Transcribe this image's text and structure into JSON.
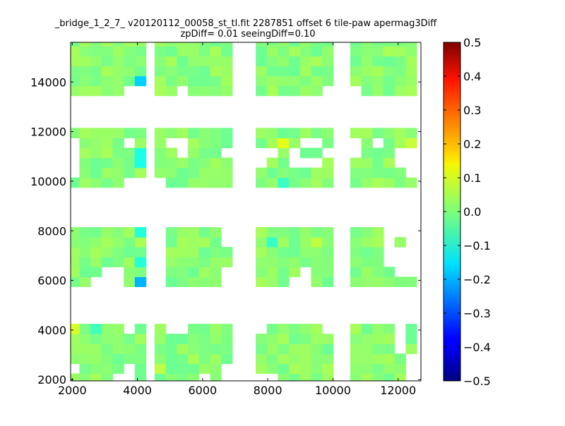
{
  "chart_data": {
    "type": "heatmap",
    "title": "_bridge_1_2_7_ v20120112_00058_st_tl.fit 2287851 offset 6 tile-paw apermag3Diff",
    "subtitle": "zpDiff= 0.01 seeingDiff=0.10",
    "xlabel": "",
    "ylabel": "",
    "xlim": [
      1950,
      12700
    ],
    "ylim": [
      1950,
      15600
    ],
    "x_ticks": [
      2000,
      4000,
      6000,
      8000,
      10000,
      12000
    ],
    "y_ticks": [
      2000,
      4000,
      6000,
      8000,
      10000,
      12000,
      14000
    ],
    "colorbar": {
      "colormap": "jet",
      "range": [
        -0.5,
        0.5
      ],
      "ticks": [
        "0.5",
        "0.4",
        "0.3",
        "0.2",
        "0.1",
        "0.0",
        "−0.1",
        "−0.2",
        "−0.3",
        "−0.4",
        "−0.5"
      ]
    },
    "cell_size": [
      340,
      400
    ],
    "outliers": [
      {
        "x": 2050,
        "y": 3950,
        "value": 0.09
      },
      {
        "x": 4020,
        "y": 14150,
        "value": -0.17
      },
      {
        "x": 4020,
        "y": 6000,
        "value": -0.2
      },
      {
        "x": 9530,
        "y": 15450,
        "value": -0.15
      },
      {
        "x": 11550,
        "y": 13750,
        "value": 0.16
      },
      {
        "x": 8520,
        "y": 11650,
        "value": 0.1
      },
      {
        "x": 12500,
        "y": 11650,
        "value": 0.07
      },
      {
        "x": 10020,
        "y": 15050,
        "value": 0.07
      },
      {
        "x": 4020,
        "y": 11250,
        "value": -0.1
      },
      {
        "x": 4020,
        "y": 10850,
        "value": -0.1
      },
      {
        "x": 4020,
        "y": 7850,
        "value": -0.09
      },
      {
        "x": 4020,
        "y": 6850,
        "value": -0.09
      },
      {
        "x": 11220,
        "y": 15450,
        "value": -0.08
      },
      {
        "x": 8520,
        "y": 9950,
        "value": -0.07
      },
      {
        "x": 8200,
        "y": 7450,
        "value": -0.07
      },
      {
        "x": 2700,
        "y": 3950,
        "value": -0.06
      },
      {
        "x": 4700,
        "y": 2450,
        "value": 0.06
      },
      {
        "x": 9520,
        "y": 7450,
        "value": 0.06
      }
    ]
  }
}
